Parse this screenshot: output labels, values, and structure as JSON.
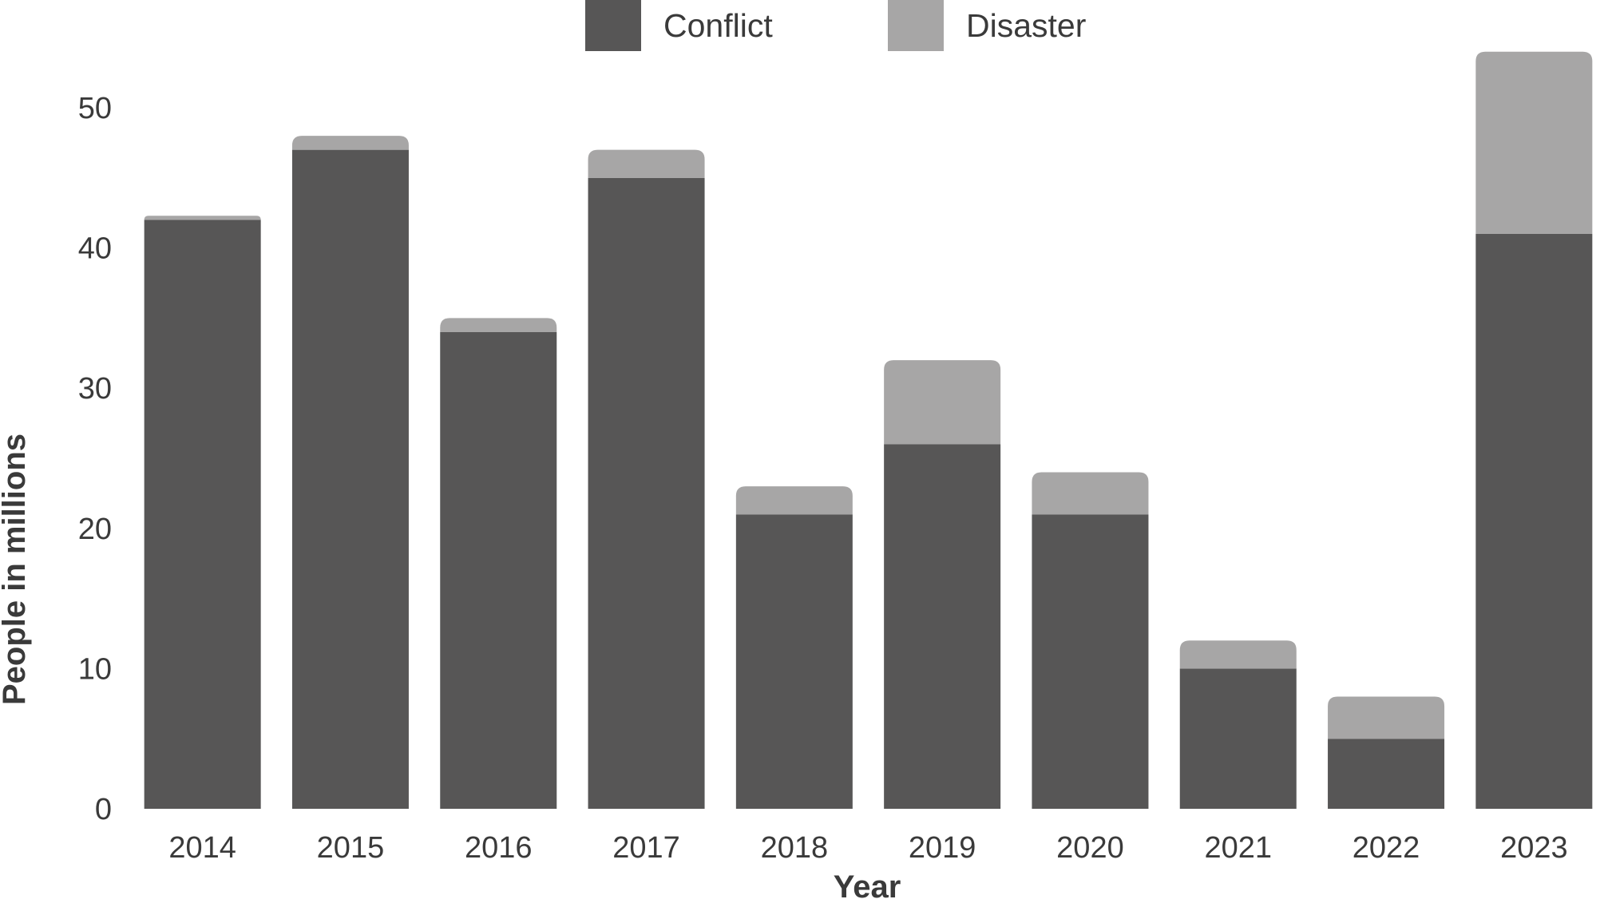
{
  "chart_data": {
    "type": "bar",
    "stacked": true,
    "categories": [
      "2014",
      "2015",
      "2016",
      "2017",
      "2018",
      "2019",
      "2020",
      "2021",
      "2022",
      "2023"
    ],
    "series": [
      {
        "name": "Conflict",
        "color": "#575656",
        "values": [
          42,
          47,
          34,
          45,
          21,
          26,
          21,
          10,
          5,
          41
        ]
      },
      {
        "name": "Disaster",
        "color": "#a7a6a6",
        "values": [
          0.3,
          1,
          1,
          2,
          2,
          6,
          3,
          2,
          3,
          13
        ]
      }
    ],
    "title": "",
    "xlabel": "Year",
    "ylabel": "People in millions",
    "ylim": [
      0,
      55
    ],
    "yticks": [
      0,
      10,
      20,
      30,
      40,
      50
    ],
    "grid": false,
    "legend": "top-center"
  }
}
